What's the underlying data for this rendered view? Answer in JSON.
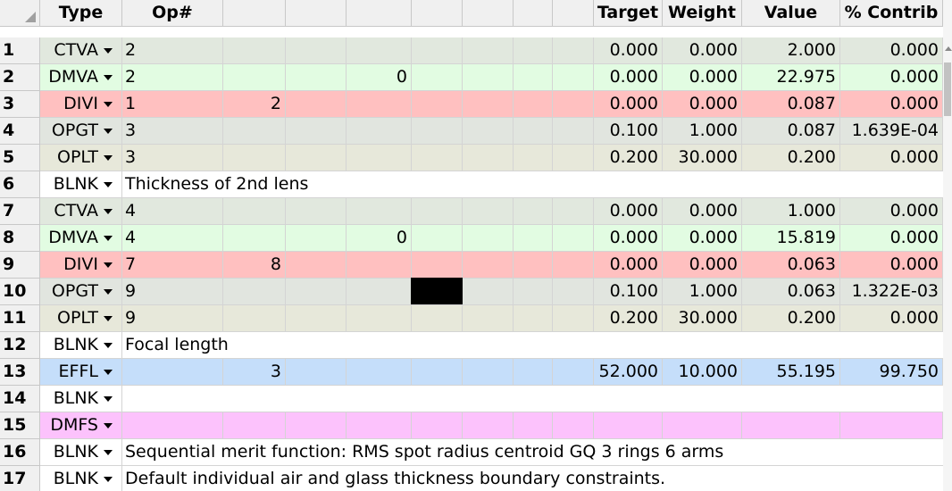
{
  "header": {
    "type": "Type",
    "op": "Op#",
    "target": "Target",
    "weight": "Weight",
    "value": "Value",
    "contrib": "% Contrib"
  },
  "colors": {
    "CTVA": "#e1e8de",
    "DMVA": "#e2fce2",
    "DIVI": "#ffc0c0",
    "OPGT": "#e1e5df",
    "OPLT": "#e7e8da",
    "BLNK": "#ffffff",
    "EFFL": "#c5defa",
    "DMFS": "#fcc2fc"
  },
  "rows": [
    {
      "n": "1",
      "type": "CTVA",
      "cells": [
        "2",
        "",
        "",
        "",
        "",
        "",
        "",
        ""
      ],
      "target": "0.000",
      "weight": "0.000",
      "value": "2.000",
      "contrib": "0.000"
    },
    {
      "n": "2",
      "type": "DMVA",
      "cells": [
        "2",
        "",
        "",
        "0",
        "",
        "",
        "",
        ""
      ],
      "target": "0.000",
      "weight": "0.000",
      "value": "22.975",
      "contrib": "0.000"
    },
    {
      "n": "3",
      "type": "DIVI",
      "cells": [
        "1",
        "2",
        "",
        "",
        "",
        "",
        "",
        ""
      ],
      "target": "0.000",
      "weight": "0.000",
      "value": "0.087",
      "contrib": "0.000"
    },
    {
      "n": "4",
      "type": "OPGT",
      "cells": [
        "3",
        "",
        "",
        "",
        "",
        "",
        "",
        ""
      ],
      "target": "0.100",
      "weight": "1.000",
      "value": "0.087",
      "contrib": "1.639E-04"
    },
    {
      "n": "5",
      "type": "OPLT",
      "cells": [
        "3",
        "",
        "",
        "",
        "",
        "",
        "",
        ""
      ],
      "target": "0.200",
      "weight": "30.000",
      "value": "0.200",
      "contrib": "0.000"
    },
    {
      "n": "6",
      "type": "BLNK",
      "comment": "Thickness of 2nd lens"
    },
    {
      "n": "7",
      "type": "CTVA",
      "cells": [
        "4",
        "",
        "",
        "",
        "",
        "",
        "",
        ""
      ],
      "target": "0.000",
      "weight": "0.000",
      "value": "1.000",
      "contrib": "0.000"
    },
    {
      "n": "8",
      "type": "DMVA",
      "cells": [
        "4",
        "",
        "",
        "0",
        "",
        "",
        "",
        ""
      ],
      "target": "0.000",
      "weight": "0.000",
      "value": "15.819",
      "contrib": "0.000"
    },
    {
      "n": "9",
      "type": "DIVI",
      "cells": [
        "7",
        "8",
        "",
        "",
        "",
        "",
        "",
        ""
      ],
      "target": "0.000",
      "weight": "0.000",
      "value": "0.063",
      "contrib": "0.000"
    },
    {
      "n": "10",
      "type": "OPGT",
      "cells": [
        "9",
        "",
        "",
        "",
        "",
        "",
        "",
        ""
      ],
      "target": "0.100",
      "weight": "1.000",
      "value": "0.063",
      "contrib": "1.322E-03"
    },
    {
      "n": "11",
      "type": "OPLT",
      "cells": [
        "9",
        "",
        "",
        "",
        "",
        "",
        "",
        ""
      ],
      "target": "0.200",
      "weight": "30.000",
      "value": "0.200",
      "contrib": "0.000"
    },
    {
      "n": "12",
      "type": "BLNK",
      "comment": "Focal length"
    },
    {
      "n": "13",
      "type": "EFFL",
      "cells": [
        "",
        "3",
        "",
        "",
        "",
        "",
        "",
        ""
      ],
      "target": "52.000",
      "weight": "10.000",
      "value": "55.195",
      "contrib": "99.750"
    },
    {
      "n": "14",
      "type": "BLNK",
      "comment": ""
    },
    {
      "n": "15",
      "type": "DMFS",
      "cells": [
        "",
        "",
        "",
        "",
        "",
        "",
        "",
        ""
      ],
      "target": "",
      "weight": "",
      "value": "",
      "contrib": ""
    },
    {
      "n": "16",
      "type": "BLNK",
      "comment": "Sequential merit function: RMS spot radius centroid GQ 3 rings 6 arms"
    },
    {
      "n": "17",
      "type": "BLNK",
      "comment": "Default individual air and glass thickness boundary constraints."
    }
  ]
}
